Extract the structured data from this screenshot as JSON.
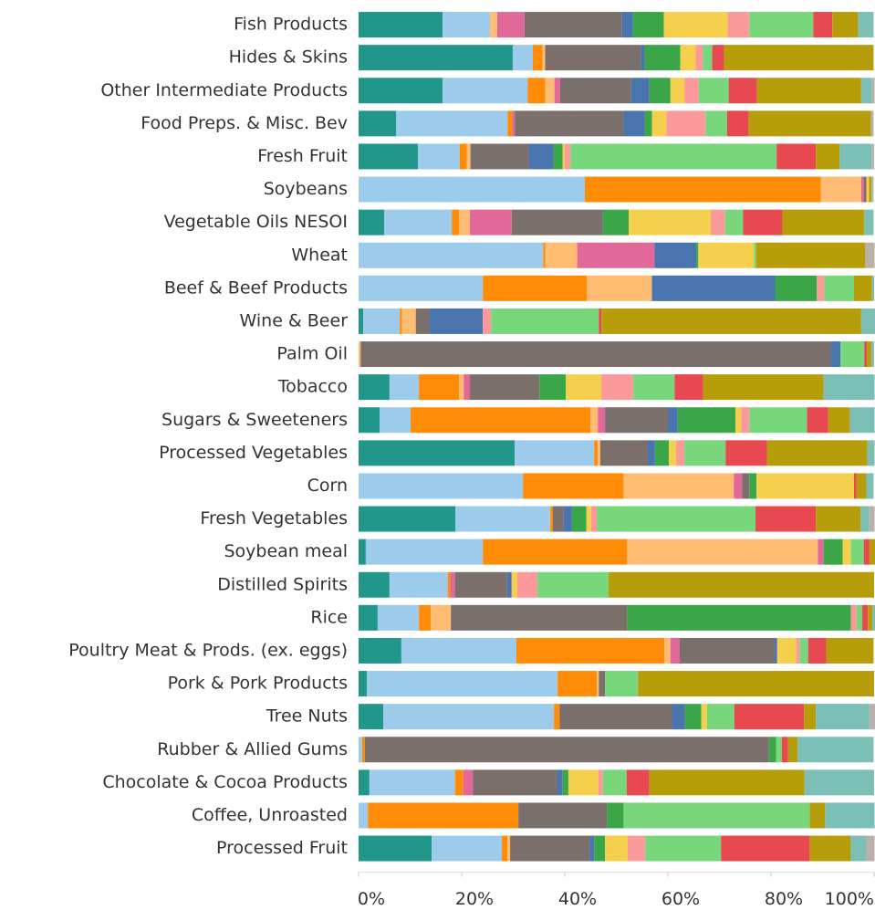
{
  "chart_data": {
    "type": "stacked-bar-horizontal",
    "categories": [
      "Fish Products",
      "Hides & Skins",
      "Other Intermediate Products",
      "Food Preps. & Misc. Bev",
      "Fresh Fruit",
      "Soybeans",
      "Vegetable Oils NESOI",
      "Wheat",
      "Beef & Beef Products",
      "Wine & Beer",
      "Palm Oil",
      "Tobacco",
      "Sugars & Sweeteners",
      "Processed Vegetables",
      "Corn",
      "Fresh Vegetables",
      "Soybean meal",
      "Distilled Spirits",
      "Rice",
      "Poultry Meat & Prods. (ex. eggs)",
      "Pork & Pork Products",
      "Tree Nuts",
      "Rubber & Allied Gums",
      "Chocolate & Cocoa Products",
      "Coffee, Unroasted",
      "Processed Fruit"
    ],
    "series": [
      {
        "color": "#21968a",
        "values": [
          16.3,
          29.9,
          16.3,
          7.3,
          11.5,
          0,
          5.0,
          0,
          0,
          0.9,
          0,
          6.0,
          4.1,
          30.3,
          0,
          18.8,
          1.4,
          6.0,
          3.7,
          8.3,
          1.6,
          4.8,
          0,
          2.1,
          0,
          14.2
        ]
      },
      {
        "color": "#9dcbeb",
        "values": [
          9.2,
          3.9,
          16.5,
          21.6,
          8.1,
          43.9,
          13.1,
          35.8,
          24.1,
          7.1,
          0,
          5.7,
          6.0,
          15.4,
          31.9,
          18.4,
          22.7,
          11.3,
          8.0,
          22.3,
          37.0,
          33.1,
          0.7,
          16.6,
          1.8,
          13.6
        ]
      },
      {
        "color": "#ff8b07",
        "values": [
          0,
          1.9,
          3.4,
          0.9,
          1.4,
          45.8,
          1.4,
          0.4,
          20.2,
          0.4,
          0,
          7.8,
          34.9,
          0.7,
          19.5,
          0.5,
          28.0,
          0.5,
          2.3,
          28.7,
          7.6,
          1.1,
          0.5,
          1.6,
          29.2,
          1.1
        ]
      },
      {
        "color": "#ffbd73",
        "values": [
          1.4,
          0.5,
          1.8,
          0,
          0.7,
          7.8,
          2.1,
          6.2,
          12.6,
          2.7,
          0.4,
          0.9,
          1.4,
          0.5,
          21.4,
          0,
          37.0,
          0,
          3.9,
          1.2,
          0.4,
          0,
          0,
          0,
          0,
          0.5
        ]
      },
      {
        "color": "#e2689a",
        "values": [
          5.3,
          0,
          1.1,
          0.5,
          0,
          0.5,
          8.1,
          15.0,
          0,
          0,
          0,
          1.2,
          1.4,
          0,
          1.6,
          0,
          1.1,
          0.9,
          0,
          1.8,
          0,
          0,
          0,
          1.9,
          0,
          0
        ]
      },
      {
        "color": "#7a6f6b",
        "values": [
          18.9,
          18.6,
          13.8,
          21.1,
          11.3,
          0.5,
          17.7,
          0,
          0,
          2.7,
          91.2,
          13.5,
          12.2,
          9.2,
          1.4,
          2.1,
          0,
          10.1,
          34.2,
          18.4,
          1.2,
          21.8,
          78.4,
          16.3,
          17.2,
          15.4
        ]
      },
      {
        "color": "#4a74ae",
        "values": [
          2.1,
          0.7,
          3.5,
          4.1,
          4.8,
          0,
          0,
          8.1,
          23.9,
          10.3,
          1.9,
          0,
          1.9,
          1.4,
          0,
          1.6,
          0,
          0.9,
          0,
          0.5,
          0,
          2.5,
          0,
          1.1,
          0,
          0.9
        ]
      },
      {
        "color": "#3aa648",
        "values": [
          6.0,
          6.9,
          4.1,
          1.4,
          1.8,
          0,
          5.0,
          0.4,
          8.1,
          0,
          0,
          5.1,
          11.2,
          2.7,
          1.4,
          2.8,
          3.7,
          0,
          43.4,
          0,
          0,
          3.2,
          1.4,
          1.1,
          3.2,
          2.1
        ]
      },
      {
        "color": "#f5d04d",
        "values": [
          12.4,
          3.0,
          2.7,
          2.8,
          0.4,
          0.5,
          15.9,
          10.8,
          0,
          0,
          0,
          6.9,
          1.1,
          1.4,
          18.9,
          0.9,
          1.6,
          1.1,
          0,
          3.7,
          0,
          1.1,
          0,
          5.8,
          0,
          4.4
        ]
      },
      {
        "color": "#fc999a",
        "values": [
          4.2,
          1.4,
          2.8,
          7.6,
          1.1,
          0,
          2.8,
          0,
          1.4,
          1.6,
          0,
          6.2,
          1.6,
          1.6,
          0,
          1.1,
          0,
          3.9,
          1.1,
          0.7,
          0,
          0,
          0,
          0.9,
          0,
          3.4
        ]
      },
      {
        "color": "#78d67b",
        "values": [
          12.4,
          1.8,
          5.8,
          4.2,
          40.0,
          0,
          3.5,
          0.4,
          5.8,
          20.9,
          4.6,
          8.0,
          11.2,
          8.0,
          0,
          30.8,
          2.5,
          13.8,
          1.1,
          1.6,
          6.4,
          5.3,
          1.1,
          4.6,
          36.1,
          14.7
        ]
      },
      {
        "color": "#e8484f",
        "values": [
          3.7,
          2.3,
          5.5,
          4.2,
          7.6,
          0,
          7.6,
          0,
          0,
          0.5,
          0.5,
          5.5,
          4.1,
          8.0,
          0.5,
          11.7,
          1.1,
          0,
          1.1,
          3.5,
          0,
          13.5,
          1.2,
          4.4,
          0,
          17.2
        ]
      },
      {
        "color": "#b89d0b",
        "values": [
          5.0,
          29.0,
          20.2,
          23.7,
          4.6,
          0.5,
          15.9,
          21.2,
          3.5,
          50.4,
          0.9,
          23.4,
          4.2,
          19.5,
          1.9,
          8.7,
          1.1,
          51.5,
          0.9,
          9.2,
          45.8,
          2.3,
          1.9,
          30.1,
          3.0,
          8.0
        ]
      },
      {
        "color": "#7bbfb6",
        "values": [
          3.0,
          0,
          2.1,
          0,
          6.2,
          0,
          1.8,
          0,
          0.4,
          2.7,
          0.5,
          9.9,
          4.8,
          1.4,
          1.4,
          1.6,
          0,
          0,
          0.5,
          0,
          0,
          10.4,
          14.7,
          13.5,
          9.6,
          3.0
        ]
      },
      {
        "color": "#bab0ac",
        "values": [
          0,
          0,
          0.5,
          0.5,
          0.5,
          0.4,
          0,
          1.8,
          0,
          0,
          0,
          0,
          0,
          0,
          0,
          1.1,
          0,
          0,
          0,
          0,
          0,
          1.1,
          0,
          0,
          0,
          1.6
        ]
      }
    ],
    "xlim": [
      0,
      100
    ],
    "xticks": [
      {
        "value": 0,
        "label": "0%"
      },
      {
        "value": 20,
        "label": "20%"
      },
      {
        "value": 40,
        "label": "40%"
      },
      {
        "value": 60,
        "label": "60%"
      },
      {
        "value": 80,
        "label": "80%"
      },
      {
        "value": 100,
        "label": "100%"
      }
    ]
  }
}
